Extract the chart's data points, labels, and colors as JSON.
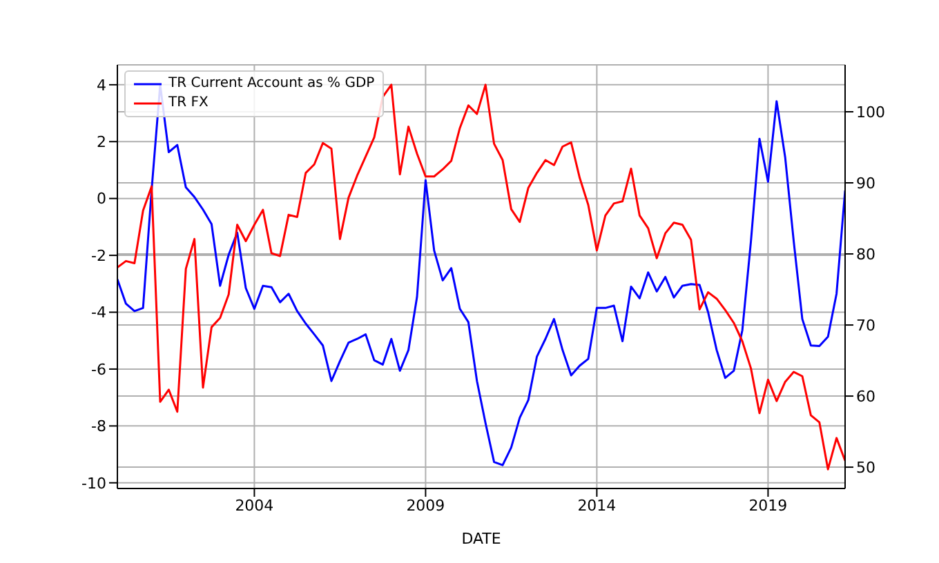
{
  "chart_data": {
    "type": "line",
    "xlabel": "DATE",
    "legend": "top left",
    "grid": true,
    "marker": "none",
    "line_style": "solid",
    "x": [
      "2000-01",
      "2000-04",
      "2000-07",
      "2000-10",
      "2001-01",
      "2001-04",
      "2001-07",
      "2001-10",
      "2002-01",
      "2002-04",
      "2002-07",
      "2002-10",
      "2003-01",
      "2003-04",
      "2003-07",
      "2003-10",
      "2004-01",
      "2004-04",
      "2004-07",
      "2004-10",
      "2005-01",
      "2005-04",
      "2005-07",
      "2005-10",
      "2006-01",
      "2006-04",
      "2006-07",
      "2006-10",
      "2007-01",
      "2007-04",
      "2007-07",
      "2007-10",
      "2008-01",
      "2008-04",
      "2008-07",
      "2008-10",
      "2009-01",
      "2009-04",
      "2009-07",
      "2009-10",
      "2010-01",
      "2010-04",
      "2010-07",
      "2010-10",
      "2011-01",
      "2011-04",
      "2011-07",
      "2011-10",
      "2012-01",
      "2012-04",
      "2012-07",
      "2012-10",
      "2013-01",
      "2013-04",
      "2013-07",
      "2013-10",
      "2014-01",
      "2014-04",
      "2014-07",
      "2014-10",
      "2015-01",
      "2015-04",
      "2015-07",
      "2015-10",
      "2016-01",
      "2016-04",
      "2016-07",
      "2016-10",
      "2017-01",
      "2017-04",
      "2017-07",
      "2017-10",
      "2018-01",
      "2018-04",
      "2018-07",
      "2018-10",
      "2019-01",
      "2019-04",
      "2019-07",
      "2019-10",
      "2020-01",
      "2020-04",
      "2020-07",
      "2020-10",
      "2021-01",
      "2021-04"
    ],
    "xlim": [
      "2000-01",
      "2021-04"
    ],
    "xticks": [
      "2004",
      "2009",
      "2014",
      "2019"
    ],
    "ylim": [
      -10.2,
      4.7
    ],
    "yticks": [
      -10,
      -8,
      -6,
      -4,
      -2,
      0,
      2,
      4
    ],
    "y2lim": [
      47,
      106.6
    ],
    "y2ticks": [
      50,
      60,
      70,
      80,
      90,
      100
    ],
    "series": [
      {
        "name": "TR Current Account as % GDP",
        "color": "#0000ff",
        "values": [
          -2.84,
          -3.7,
          -3.96,
          -3.85,
          0.3,
          4.0,
          1.63,
          1.88,
          0.39,
          0.05,
          -0.39,
          -0.9,
          -3.07,
          -1.98,
          -1.2,
          -3.15,
          -3.88,
          -3.07,
          -3.12,
          -3.65,
          -3.35,
          -3.96,
          -4.4,
          -4.78,
          -5.17,
          -6.42,
          -5.72,
          -5.07,
          -4.94,
          -4.78,
          -5.69,
          -5.84,
          -4.94,
          -6.06,
          -5.33,
          -3.46,
          0.64,
          -1.83,
          -2.88,
          -2.45,
          -3.88,
          -4.35,
          -6.42,
          -7.9,
          -9.27,
          -9.38,
          -8.76,
          -7.71,
          -7.09,
          -5.56,
          -4.94,
          -4.24,
          -5.33,
          -6.22,
          -5.88,
          -5.64,
          -3.85,
          -3.85,
          -3.77,
          -5.02,
          -3.1,
          -3.51,
          -2.6,
          -3.27,
          -2.76,
          -3.48,
          -3.07,
          -3.01,
          -3.04,
          -4.0,
          -5.33,
          -6.31,
          -6.06,
          -4.63,
          -1.51,
          2.1,
          0.59,
          3.42,
          1.45,
          -1.51,
          -4.24,
          -5.17,
          -5.19,
          -4.86,
          -3.35,
          0.28
        ]
      },
      {
        "name": "TR FX",
        "color": "#ff0000",
        "axis": "y2",
        "values": [
          78.1,
          79.0,
          78.7,
          86.1,
          89.5,
          59.2,
          60.9,
          57.8,
          77.9,
          82.1,
          61.2,
          69.7,
          71.0,
          74.3,
          84.1,
          81.8,
          84.1,
          86.2,
          80.1,
          79.7,
          85.5,
          85.2,
          91.4,
          92.6,
          95.6,
          94.8,
          82.1,
          87.9,
          91.0,
          93.7,
          96.4,
          102.1,
          103.8,
          91.2,
          97.9,
          94.1,
          90.9,
          90.9,
          91.9,
          93.1,
          97.7,
          100.9,
          99.7,
          103.8,
          95.5,
          93.2,
          86.3,
          84.5,
          89.3,
          91.4,
          93.2,
          92.5,
          95.1,
          95.7,
          90.7,
          86.9,
          80.5,
          85.4,
          87.1,
          87.4,
          92.0,
          85.4,
          83.6,
          79.4,
          82.9,
          84.4,
          84.1,
          82.0,
          72.2,
          74.6,
          73.7,
          72.1,
          70.3,
          67.7,
          63.9,
          57.6,
          62.3,
          59.3,
          62.0,
          63.4,
          62.8,
          57.3,
          56.3,
          49.7,
          54.1,
          50.9
        ]
      }
    ]
  }
}
